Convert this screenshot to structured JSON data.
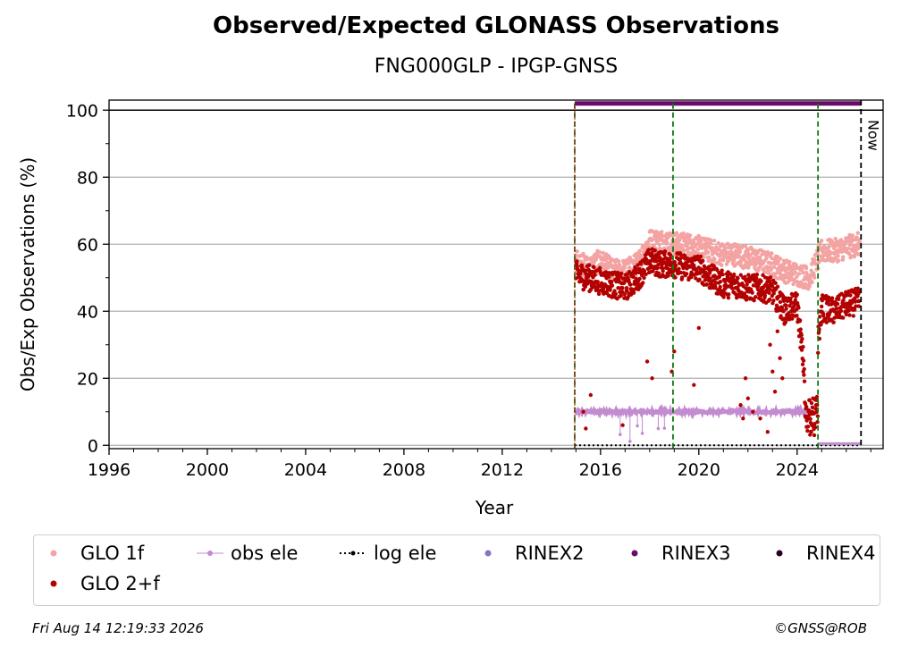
{
  "title": "Observed/Expected GLONASS Observations",
  "subtitle": "FNG000GLP - IPGP-GNSS",
  "footer": {
    "timestamp": "Fri Aug 14 12:19:33 2026",
    "credit": "©GNSS@ROB"
  },
  "colors": {
    "glo1f": "#f4a3a3",
    "glo2f": "#b30000",
    "obs_ele": "#c38bd0",
    "log_ele": "#000000",
    "rinex2": "#8a73c0",
    "rinex3": "#6a0a6a",
    "rinex4": "#2a0020",
    "event_line": "#117a11",
    "grid": "#b0b0b0"
  },
  "legend": [
    {
      "label": "GLO 1f",
      "key": "glo1f",
      "marker": "dot"
    },
    {
      "label": "obs ele",
      "key": "obs_ele",
      "marker": "line-dot"
    },
    {
      "label": "log ele",
      "key": "log_ele",
      "marker": "dotted-line"
    },
    {
      "label": "RINEX2",
      "key": "rinex2",
      "marker": "dot"
    },
    {
      "label": "RINEX3",
      "key": "rinex3",
      "marker": "dot"
    },
    {
      "label": "RINEX4",
      "key": "rinex4",
      "marker": "dot"
    },
    {
      "label": "GLO 2+f",
      "key": "glo2f",
      "marker": "dot"
    }
  ],
  "chart_data": {
    "type": "scatter",
    "title": "Observed/Expected GLONASS Observations",
    "subtitle": "FNG000GLP - IPGP-GNSS",
    "xlabel": "Year",
    "ylabel": "Obs/Exp Observations (%)",
    "xlim": [
      1996,
      2027.5
    ],
    "ylim": [
      -1,
      103
    ],
    "xticks": [
      1996,
      2000,
      2004,
      2008,
      2012,
      2016,
      2020,
      2024
    ],
    "yticks": [
      0,
      20,
      40,
      60,
      80,
      100
    ],
    "grid": "horizontal",
    "legend_position": "below",
    "event_lines": [
      2014.95,
      2018.95,
      2024.85
    ],
    "now_line": {
      "x": 2026.6,
      "label": "Now"
    },
    "series": [
      {
        "name": "GLO 1f",
        "x": [
          2015.0,
          2015.5,
          2016.0,
          2016.5,
          2017.0,
          2017.5,
          2018.0,
          2018.5,
          2019.0,
          2019.5,
          2020.0,
          2020.5,
          2021.0,
          2021.5,
          2022.0,
          2022.5,
          2023.0,
          2023.5,
          2024.0,
          2024.5,
          2025.0,
          2025.5,
          2026.0,
          2026.5
        ],
        "values": [
          55,
          53,
          55,
          52,
          52,
          54,
          61,
          61,
          60,
          60,
          59,
          58,
          57,
          57,
          56,
          55,
          54,
          52,
          51,
          50,
          58,
          58,
          59,
          60
        ]
      },
      {
        "name": "GLO 2+f",
        "x": [
          2015.0,
          2015.5,
          2016.0,
          2016.5,
          2017.0,
          2017.5,
          2018.0,
          2018.5,
          2019.0,
          2019.5,
          2020.0,
          2020.5,
          2021.0,
          2021.5,
          2022.0,
          2022.5,
          2023.0,
          2023.5,
          2024.0,
          2024.5,
          2025.0,
          2025.5,
          2026.0,
          2026.5
        ],
        "values": [
          51,
          50,
          49,
          48,
          47,
          50,
          55,
          54,
          54,
          53,
          53,
          50,
          48,
          48,
          47,
          47,
          46,
          40,
          42,
          8,
          41,
          40,
          42,
          43
        ]
      },
      {
        "name": "obs ele",
        "x": [
          2015.0,
          2016.0,
          2017.0,
          2018.0,
          2019.0,
          2020.0,
          2021.0,
          2022.0,
          2023.0,
          2024.0,
          2024.5
        ],
        "values": [
          10,
          10,
          10,
          10,
          10,
          10,
          10,
          10,
          10,
          10,
          10
        ]
      },
      {
        "name": "log ele",
        "x": [
          2014.95,
          2026.6
        ],
        "values": [
          0,
          0
        ]
      },
      {
        "name": "RINEX3",
        "x": [
          2014.95,
          2026.6
        ],
        "values": [
          102,
          102
        ]
      }
    ]
  }
}
